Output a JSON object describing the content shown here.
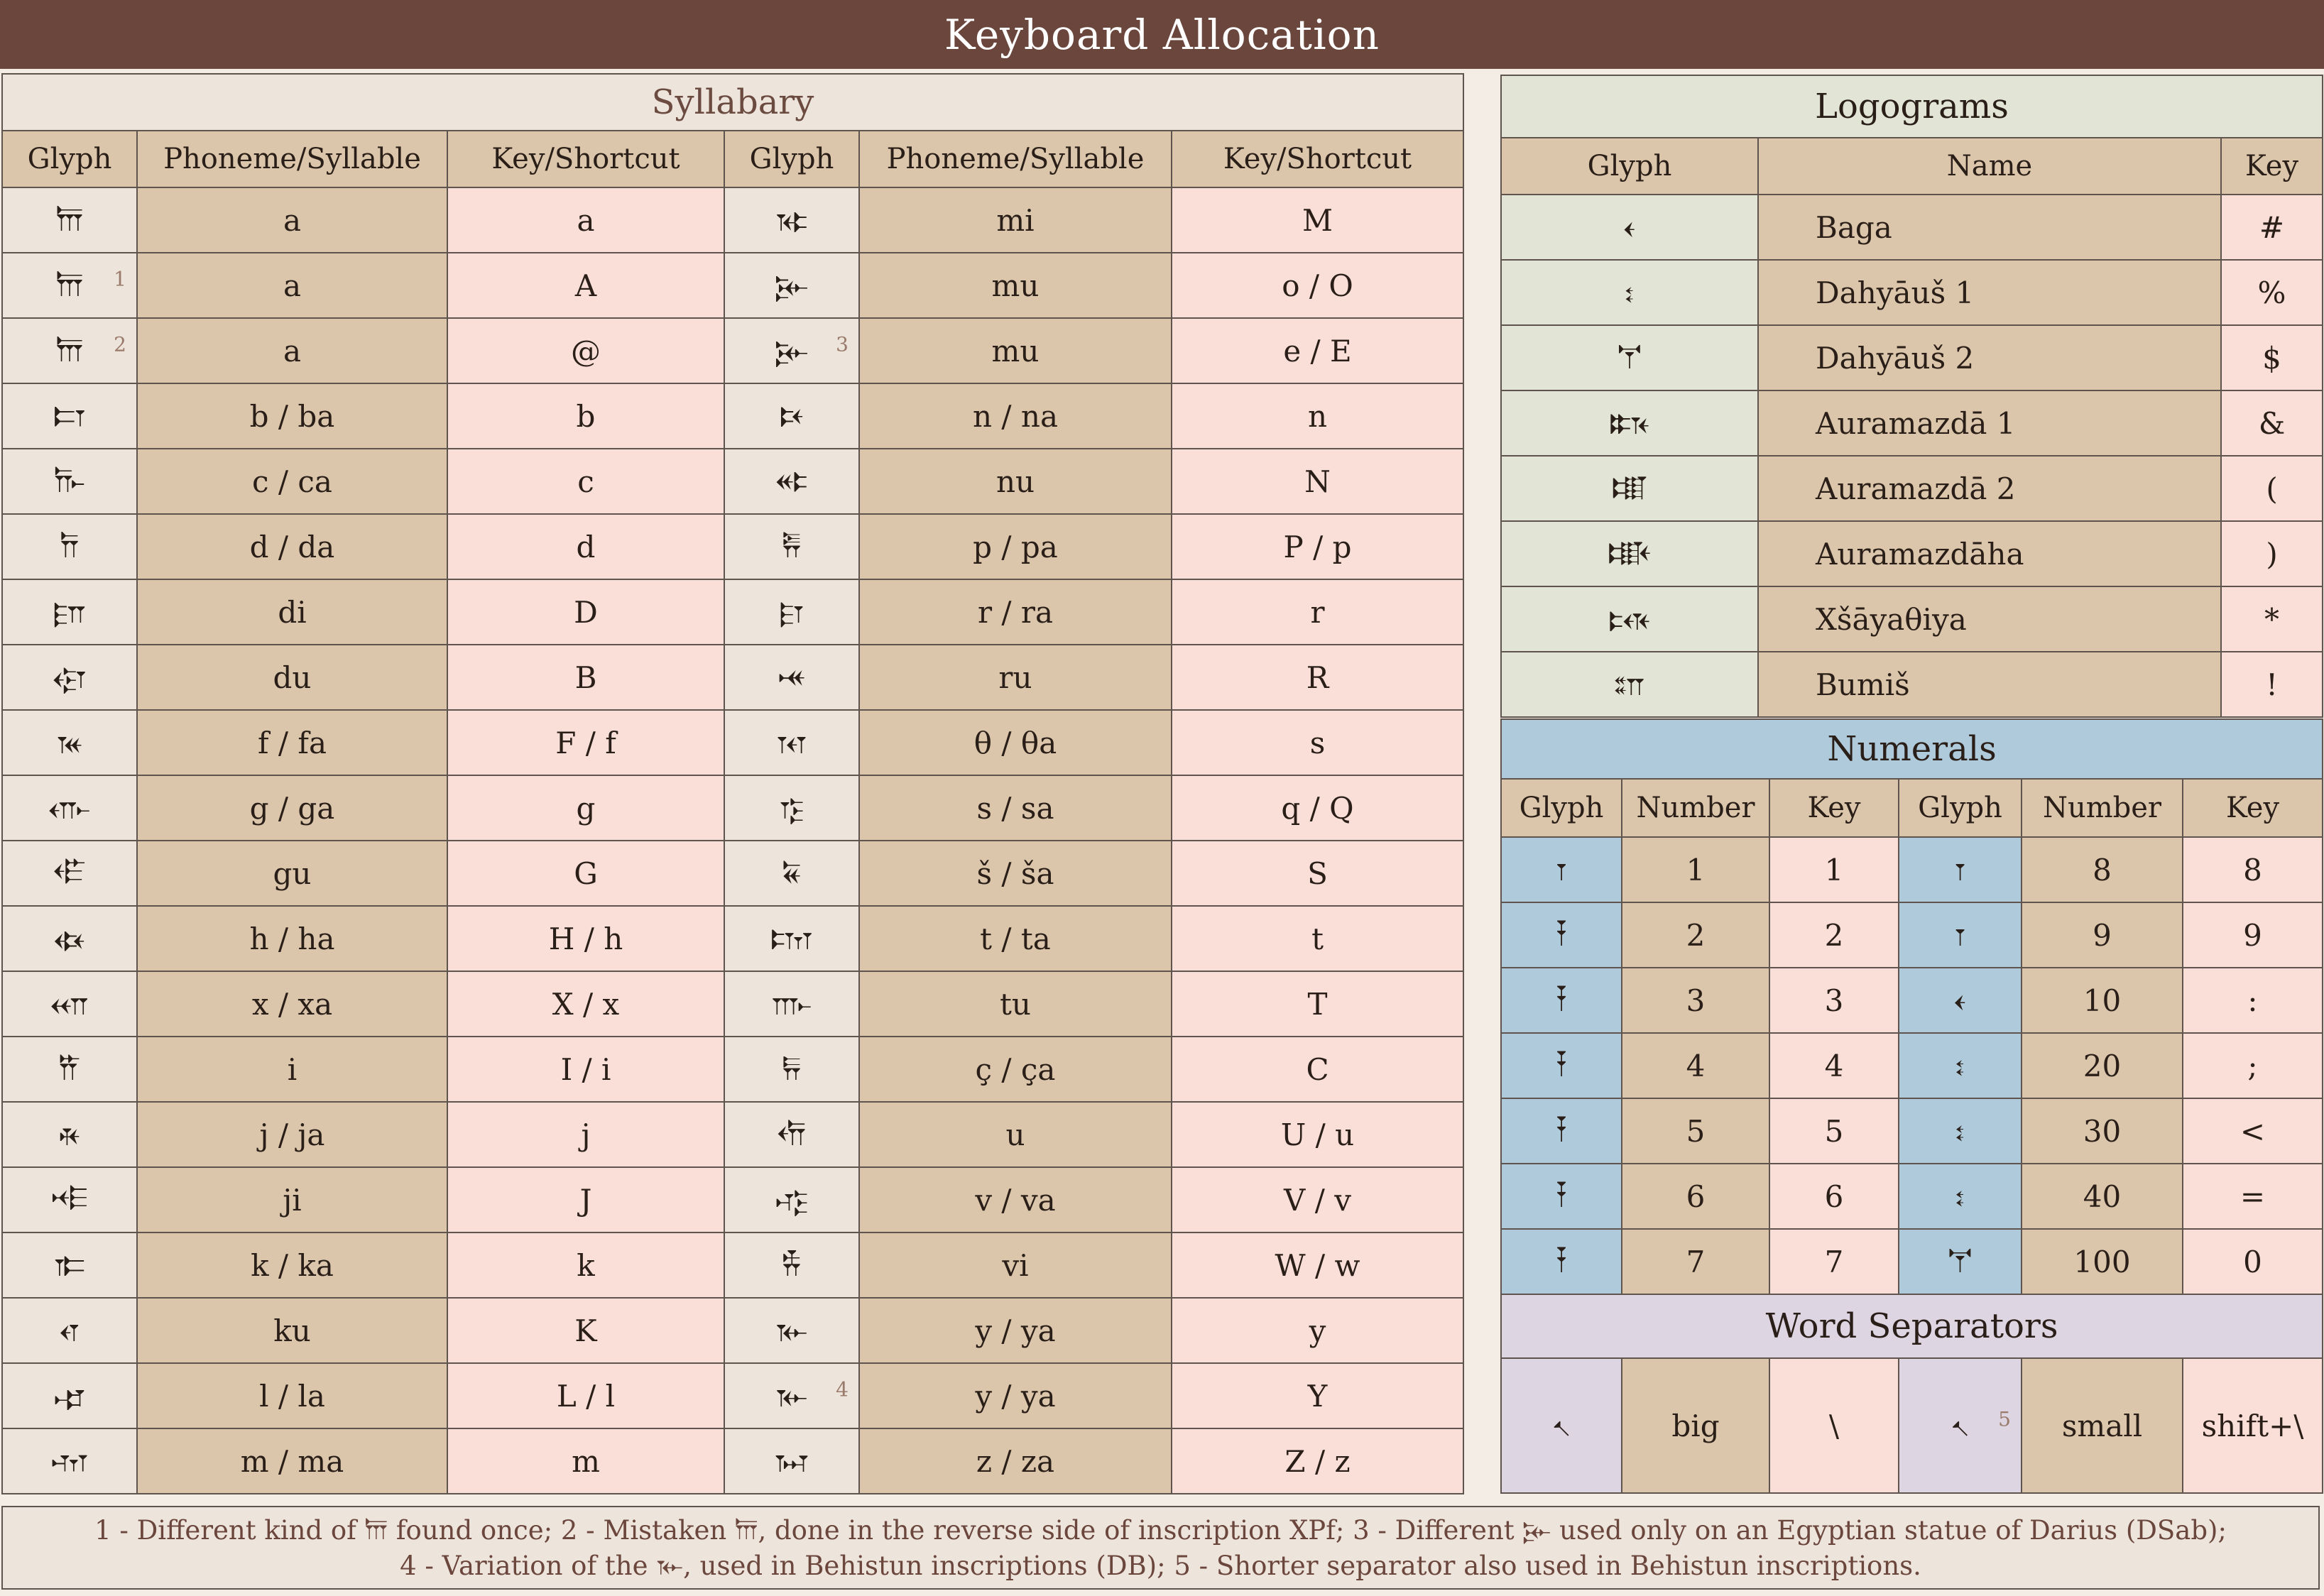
{
  "title": "Keyboard Allocation",
  "syllabary": {
    "title": "Syllabary",
    "headers": [
      "Glyph",
      "Phoneme/Syllable",
      "Key/Shortcut",
      "Glyph",
      "Phoneme/Syllable",
      "Key/Shortcut"
    ],
    "rows": [
      {
        "g1": "𐎠",
        "n1": "",
        "p1": "a",
        "k1": "a",
        "g2": "𐎷",
        "n2": "",
        "p2": "mi",
        "k2": "M"
      },
      {
        "g1": "𐎠",
        "n1": "1",
        "p1": "a",
        "k1": "A",
        "g2": "𐎸",
        "n2": "",
        "p2": "mu",
        "k2": "o / O"
      },
      {
        "g1": "𐎠",
        "n1": "2",
        "p1": "a",
        "k1": "@",
        "g2": "𐎸",
        "n2": "3",
        "p2": "mu",
        "k2": "e / E"
      },
      {
        "g1": "𐎲",
        "n1": "",
        "p1": "b / ba",
        "k1": "b",
        "g2": "𐎴",
        "n2": "",
        "p2": "n / na",
        "k2": "n"
      },
      {
        "g1": "𐎨",
        "n1": "",
        "p1": "c / ca",
        "k1": "c",
        "g2": "𐎵",
        "n2": "",
        "p2": "nu",
        "k2": "N"
      },
      {
        "g1": "𐎭",
        "n1": "",
        "p1": "d / da",
        "k1": "d",
        "g2": "𐎱",
        "n2": "",
        "p2": "p / pa",
        "k2": "P / p"
      },
      {
        "g1": "𐎮",
        "n1": "",
        "p1": "di",
        "k1": "D",
        "g2": "𐎼",
        "n2": "",
        "p2": "r / ra",
        "k2": "r"
      },
      {
        "g1": "𐎯",
        "n1": "",
        "p1": "du",
        "k1": "B",
        "g2": "𐎽",
        "n2": "",
        "p2": "ru",
        "k2": "R"
      },
      {
        "g1": "𐎳",
        "n1": "",
        "p1": "f / fa",
        "k1": "F / f",
        "g2": "𐎰",
        "n2": "",
        "p2": "θ / θa",
        "k2": "s"
      },
      {
        "g1": "𐎥",
        "n1": "",
        "p1": "g / ga",
        "k1": "g",
        "g2": "𐎿",
        "n2": "",
        "p2": "s / sa",
        "k2": "q / Q"
      },
      {
        "g1": "𐎦",
        "n1": "",
        "p1": "gu",
        "k1": "G",
        "g2": "𐏁",
        "n2": "",
        "p2": "š / ša",
        "k2": "S"
      },
      {
        "g1": "𐏃",
        "n1": "",
        "p1": "h / ha",
        "k1": "H / h",
        "g2": "𐎫",
        "n2": "",
        "p2": "t / ta",
        "k2": "t"
      },
      {
        "g1": "𐎧",
        "n1": "",
        "p1": "x / xa",
        "k1": "X / x",
        "g2": "𐎬",
        "n2": "",
        "p2": "tu",
        "k2": "T"
      },
      {
        "g1": "𐎡",
        "n1": "",
        "p1": "i",
        "k1": "I / i",
        "g2": "𐏂",
        "n2": "",
        "p2": "ç / ça",
        "k2": "C"
      },
      {
        "g1": "𐎩",
        "n1": "",
        "p1": "j / ja",
        "k1": "j",
        "g2": "𐎢",
        "n2": "",
        "p2": "u",
        "k2": "U / u"
      },
      {
        "g1": "𐎪",
        "n1": "",
        "p1": "ji",
        "k1": "J",
        "g2": "𐎺",
        "n2": "",
        "p2": "v / va",
        "k2": "V / v"
      },
      {
        "g1": "𐎣",
        "n1": "",
        "p1": "k / ka",
        "k1": "k",
        "g2": "𐎻",
        "n2": "",
        "p2": "vi",
        "k2": "W / w"
      },
      {
        "g1": "𐎤",
        "n1": "",
        "p1": "ku",
        "k1": "K",
        "g2": "𐎹",
        "n2": "",
        "p2": "y / ya",
        "k2": "y"
      },
      {
        "g1": "𐎾",
        "n1": "",
        "p1": "l / la",
        "k1": "L / l",
        "g2": "𐎹",
        "n2": "4",
        "p2": "y / ya",
        "k2": "Y"
      },
      {
        "g1": "𐎶",
        "n1": "",
        "p1": "m / ma",
        "k1": "m",
        "g2": "𐏀",
        "n2": "",
        "p2": "z / za",
        "k2": "Z / z"
      }
    ]
  },
  "logograms": {
    "title": "Logograms",
    "headers": [
      "Glyph",
      "Name",
      "Key"
    ],
    "rows": [
      {
        "g": "𐏓",
        "name": "Baga",
        "key": "#"
      },
      {
        "g": "𐏔",
        "name": "Dahyāuš 1",
        "key": "%"
      },
      {
        "g": "𐏕",
        "name": "Dahyāuš 2",
        "key": "$"
      },
      {
        "g": "𐏈",
        "name": "Auramazdā 1",
        "key": "&"
      },
      {
        "g": "𐏉",
        "name": "Auramazdā 2",
        "key": "("
      },
      {
        "g": "𐏊",
        "name": "Auramazdāha",
        "key": ")"
      },
      {
        "g": "𐏋",
        "name": "Xšāyaθiya",
        "key": "*"
      },
      {
        "g": "𐏍",
        "name": "Bumiš",
        "key": "!"
      }
    ]
  },
  "numerals": {
    "title": "Numerals",
    "headers": [
      "Glyph",
      "Number",
      "Key",
      "Glyph",
      "Number",
      "Key"
    ],
    "rows": [
      {
        "g1": "𐏑",
        "n1": "1",
        "k1": "1",
        "g2": "𐏑",
        "n2": "8",
        "k2": "8"
      },
      {
        "g1": "𐏒",
        "n1": "2",
        "k1": "2",
        "g2": "𐏑",
        "n2": "9",
        "k2": "9"
      },
      {
        "g1": "𐏒",
        "n1": "3",
        "k1": "3",
        "g2": "𐏓",
        "n2": "10",
        "k2": ":"
      },
      {
        "g1": "𐏒",
        "n1": "4",
        "k1": "4",
        "g2": "𐏔",
        "n2": "20",
        "k2": ";"
      },
      {
        "g1": "𐏒",
        "n1": "5",
        "k1": "5",
        "g2": "𐏔",
        "n2": "30",
        "k2": "<"
      },
      {
        "g1": "𐏒",
        "n1": "6",
        "k1": "6",
        "g2": "𐏔",
        "n2": "40",
        "k2": "="
      },
      {
        "g1": "𐏒",
        "n1": "7",
        "k1": "7",
        "g2": "𐏕",
        "n2": "100",
        "k2": "0"
      }
    ]
  },
  "word_separators": {
    "title": "Word Separators",
    "row": {
      "g1": "𐏐",
      "n1": "big",
      "k1": "\\",
      "g2": "𐏐",
      "note2": "5",
      "n2": "small",
      "k2": "shift+\\"
    }
  },
  "footnote": {
    "line1_a": "1 - Different kind of ",
    "line1_g1": "𐎠",
    "line1_b": " found once; 2 - Mistaken ",
    "line1_g2": "𐎠",
    "line1_c": ", done in the reverse side of inscription XPf; 3 - Different ",
    "line1_g3": "𐎸",
    "line1_d": " used only on an Egyptian statue of Darius (DSab);",
    "line2_a": "4 - Variation of the ",
    "line2_g1": "𐎹",
    "line2_b": ", used in Behistun inscriptions (DB); 5 - Shorter separator also used in Behistun inscriptions."
  }
}
